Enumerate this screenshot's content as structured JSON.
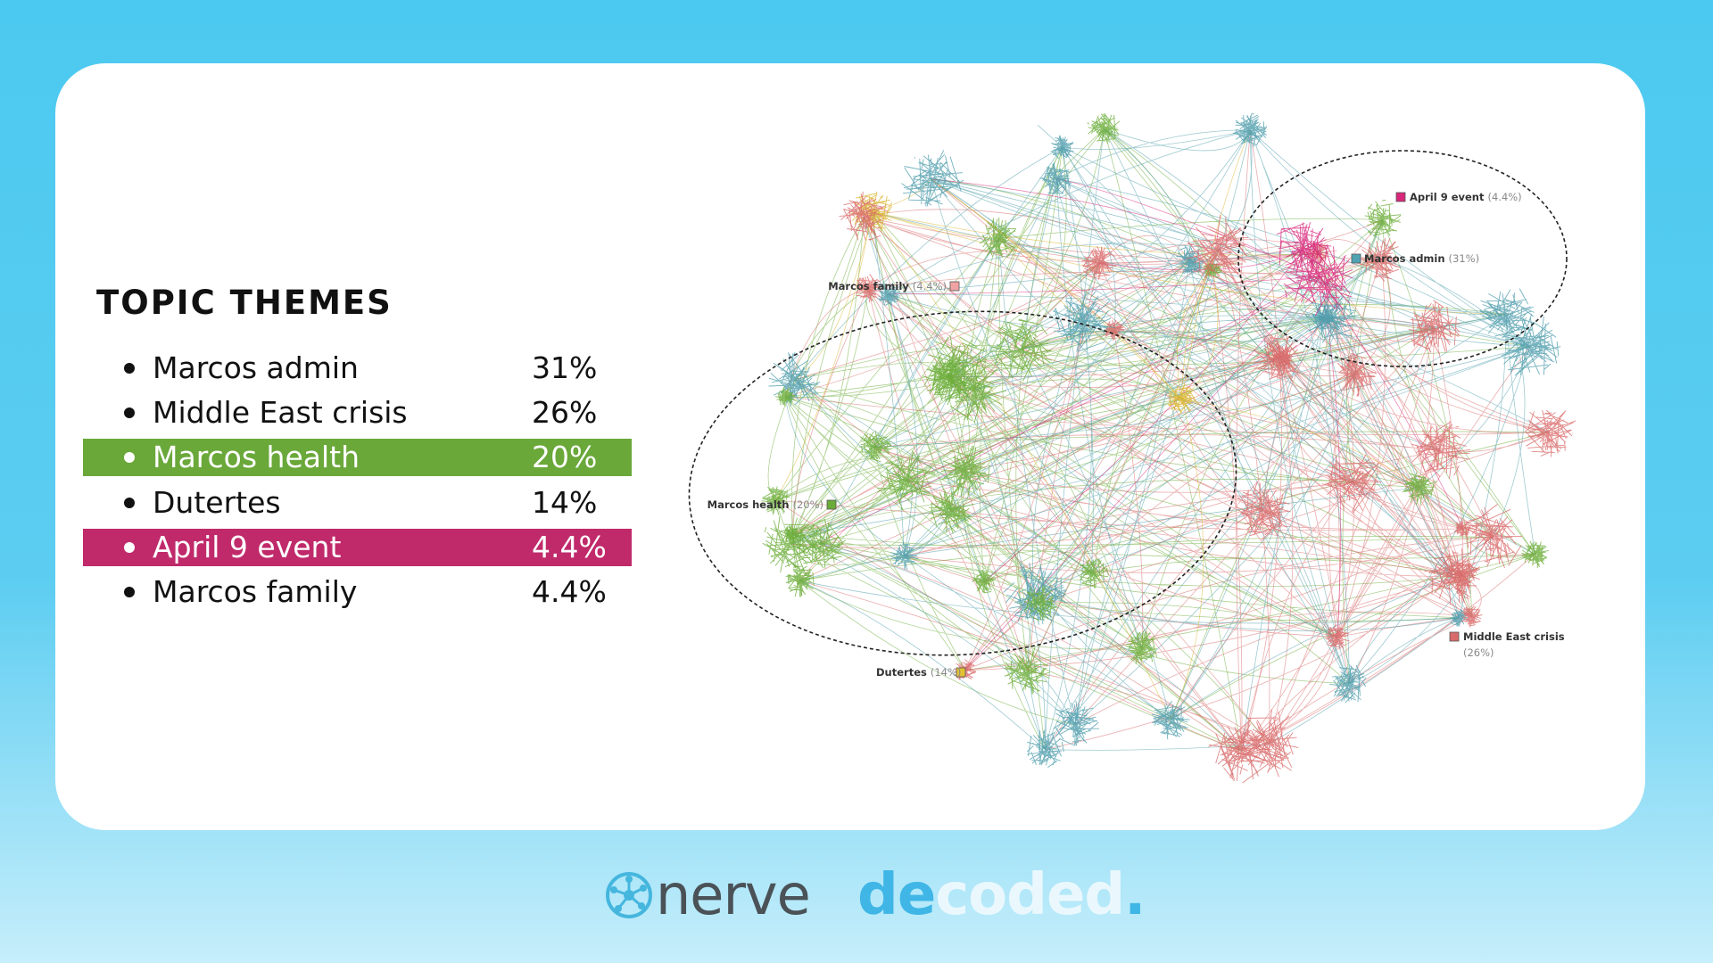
{
  "title": "TOPIC THEMES",
  "topics": [
    {
      "name": "Marcos admin",
      "share": "31%"
    },
    {
      "name": "Middle East crisis",
      "share": "26%"
    },
    {
      "name": "Marcos health",
      "share": "20%",
      "highlight": "#6aa83a"
    },
    {
      "name": "Dutertes",
      "share": "14%"
    },
    {
      "name": "April 9 event",
      "share": "4.4%",
      "highlight": "#c02a6b"
    },
    {
      "name": "Marcos family",
      "share": "4.4%"
    }
  ],
  "graph_labels": [
    {
      "name": "April 9 event",
      "share": "(4.4%)",
      "color": "#d8277a"
    },
    {
      "name": "Marcos admin",
      "share": "(31%)",
      "color": "#4fa3b3"
    },
    {
      "name": "Marcos family",
      "share": "(4.4%)",
      "color": "#f0a3a3"
    },
    {
      "name": "Marcos health",
      "share": "(20%)",
      "color": "#6aac37"
    },
    {
      "name": "Dutertes",
      "share": "(14%)",
      "color": "#e2c233"
    },
    {
      "name": "Middle East crisis",
      "share": "(26%)",
      "color": "#d96a6a"
    }
  ],
  "footer": {
    "brand": "nerve",
    "decoded": [
      "de",
      "coded",
      "."
    ]
  }
}
